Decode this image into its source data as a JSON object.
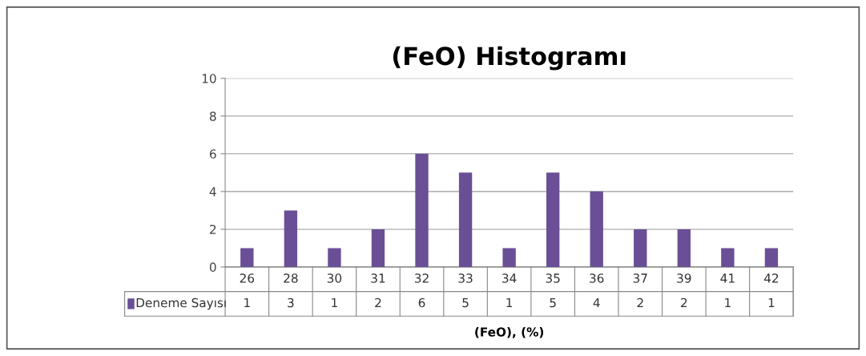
{
  "chart_data": {
    "type": "bar",
    "title": "(FeO) Histogramı",
    "xlabel": "(FeO), (%)",
    "categories": [
      "26",
      "28",
      "30",
      "31",
      "32",
      "33",
      "34",
      "35",
      "36",
      "37",
      "39",
      "41",
      "42"
    ],
    "series": [
      {
        "name": "Deneme Sayısı",
        "color": "#6a4f96",
        "values": [
          1,
          3,
          1,
          2,
          6,
          5,
          1,
          5,
          4,
          2,
          2,
          1,
          1
        ]
      }
    ],
    "ylim": [
      0,
      10
    ],
    "yticks": [
      0,
      2,
      4,
      6,
      8,
      10
    ],
    "grid": "y",
    "data_labels": true
  }
}
